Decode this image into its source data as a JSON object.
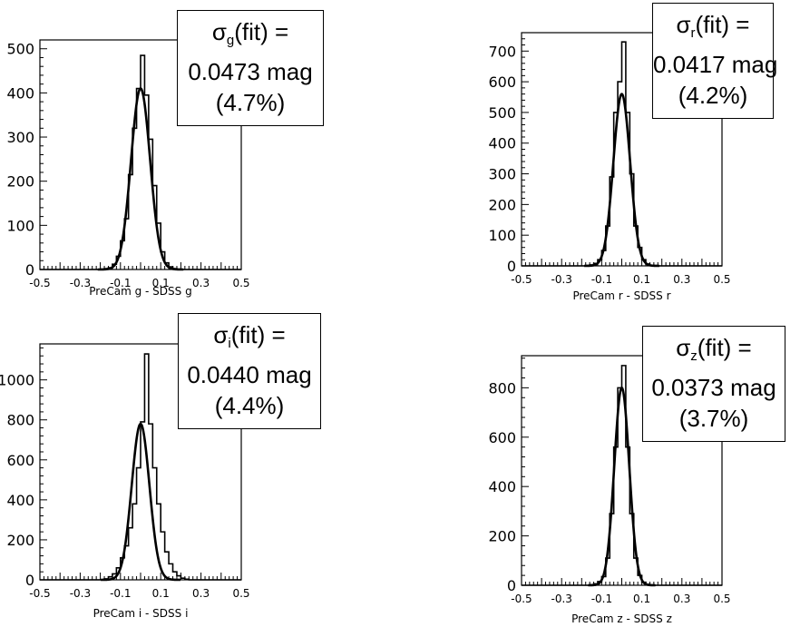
{
  "chart_data": [
    {
      "id": "g",
      "type": "histogram",
      "xlabel": "PreCam g - SDSS g",
      "xlim": [
        -0.5,
        0.5
      ],
      "ylim": [
        0,
        520
      ],
      "xticks": [
        -0.5,
        -0.3,
        -0.1,
        0.1,
        0.3,
        0.5
      ],
      "xtick_labels": [
        "-0.5",
        "-0.3",
        "-0.1",
        "0.1",
        "0.3",
        "0.5"
      ],
      "yticks": [
        0,
        100,
        200,
        300,
        400,
        500
      ],
      "ytick_labels": [
        "0",
        "100",
        "200",
        "300",
        "400",
        "500"
      ],
      "bins": [
        -0.5,
        -0.48,
        -0.46,
        -0.44,
        -0.42,
        -0.4,
        -0.38,
        -0.36,
        -0.34,
        -0.32,
        -0.3,
        -0.28,
        -0.26,
        -0.24,
        -0.22,
        -0.2,
        -0.18,
        -0.16,
        -0.14,
        -0.12,
        -0.1,
        -0.08,
        -0.06,
        -0.04,
        -0.02,
        0.0,
        0.02,
        0.04,
        0.06,
        0.08,
        0.1,
        0.12,
        0.14,
        0.16,
        0.18,
        0.2,
        0.22,
        0.24,
        0.26,
        0.28,
        0.3,
        0.32,
        0.34,
        0.36,
        0.38,
        0.4,
        0.42,
        0.44,
        0.46,
        0.48,
        0.5
      ],
      "counts": [
        0,
        0,
        0,
        0,
        0,
        0,
        0,
        0,
        0,
        0,
        0,
        0,
        0,
        0,
        0,
        0,
        2,
        4,
        12,
        30,
        65,
        115,
        215,
        320,
        410,
        485,
        395,
        295,
        190,
        105,
        40,
        15,
        6,
        2,
        0,
        0,
        0,
        0,
        0,
        0,
        0,
        0,
        0,
        0,
        0,
        0,
        0,
        0,
        0,
        0
      ],
      "fit": {
        "amplitude": 410,
        "mean": 0.0,
        "sigma": 0.0473
      },
      "sigma_label": {
        "symbol": "σ",
        "sub": "g",
        "line1_suffix": "(fit) =",
        "line2": "0.0473 mag",
        "line3": "(4.7%)"
      }
    },
    {
      "id": "r",
      "type": "histogram",
      "xlabel": "PreCam r - SDSS r",
      "xlim": [
        -0.5,
        0.5
      ],
      "ylim": [
        0,
        760
      ],
      "xticks": [
        -0.5,
        -0.3,
        -0.1,
        0.1,
        0.3,
        0.5
      ],
      "xtick_labels": [
        "-0.5",
        "-0.3",
        "-0.1",
        "0.1",
        "0.3",
        "0.5"
      ],
      "yticks": [
        0,
        100,
        200,
        300,
        400,
        500,
        600,
        700
      ],
      "ytick_labels": [
        "0",
        "100",
        "200",
        "300",
        "400",
        "500",
        "600",
        "700"
      ],
      "bins": [
        -0.5,
        -0.48,
        -0.46,
        -0.44,
        -0.42,
        -0.4,
        -0.38,
        -0.36,
        -0.34,
        -0.32,
        -0.3,
        -0.28,
        -0.26,
        -0.24,
        -0.22,
        -0.2,
        -0.18,
        -0.16,
        -0.14,
        -0.12,
        -0.1,
        -0.08,
        -0.06,
        -0.04,
        -0.02,
        0.0,
        0.02,
        0.04,
        0.06,
        0.08,
        0.1,
        0.12,
        0.14,
        0.16,
        0.18,
        0.2,
        0.22,
        0.24,
        0.26,
        0.28,
        0.3,
        0.32,
        0.34,
        0.36,
        0.38,
        0.4,
        0.42,
        0.44,
        0.46,
        0.48,
        0.5
      ],
      "counts": [
        0,
        0,
        0,
        0,
        0,
        0,
        0,
        0,
        0,
        0,
        0,
        0,
        0,
        0,
        0,
        0,
        1,
        3,
        8,
        20,
        50,
        130,
        290,
        500,
        600,
        730,
        500,
        300,
        130,
        60,
        20,
        6,
        2,
        0,
        0,
        0,
        0,
        0,
        0,
        0,
        0,
        0,
        0,
        0,
        0,
        0,
        0,
        0,
        0,
        0
      ],
      "fit": {
        "amplitude": 560,
        "mean": 0.0,
        "sigma": 0.0417
      },
      "sigma_label": {
        "symbol": "σ",
        "sub": "r",
        "line1_suffix": "(fit) =",
        "line2": "0.0417 mag",
        "line3": "(4.2%)"
      }
    },
    {
      "id": "i",
      "type": "histogram",
      "xlabel": "PreCam i - SDSS i",
      "xlim": [
        -0.5,
        0.5
      ],
      "ylim": [
        0,
        1180
      ],
      "xticks": [
        -0.5,
        -0.3,
        -0.1,
        0.1,
        0.3,
        0.5
      ],
      "xtick_labels": [
        "-0.5",
        "-0.3",
        "-0.1",
        "0.1",
        "0.3",
        "0.5"
      ],
      "yticks": [
        0,
        200,
        400,
        600,
        800,
        1000
      ],
      "ytick_labels": [
        "0",
        "200",
        "400",
        "600",
        "800",
        "1000"
      ],
      "bins": [
        -0.5,
        -0.48,
        -0.46,
        -0.44,
        -0.42,
        -0.4,
        -0.38,
        -0.36,
        -0.34,
        -0.32,
        -0.3,
        -0.28,
        -0.26,
        -0.24,
        -0.22,
        -0.2,
        -0.18,
        -0.16,
        -0.14,
        -0.12,
        -0.1,
        -0.08,
        -0.06,
        -0.04,
        -0.02,
        0.0,
        0.02,
        0.04,
        0.06,
        0.08,
        0.1,
        0.12,
        0.14,
        0.16,
        0.18,
        0.2,
        0.22,
        0.24,
        0.26,
        0.28,
        0.3,
        0.32,
        0.34,
        0.36,
        0.38,
        0.4,
        0.42,
        0.44,
        0.46,
        0.48,
        0.5
      ],
      "counts": [
        0,
        0,
        0,
        0,
        0,
        0,
        0,
        0,
        0,
        0,
        0,
        0,
        0,
        0,
        0,
        0,
        5,
        15,
        30,
        60,
        110,
        170,
        260,
        380,
        560,
        790,
        1130,
        780,
        560,
        380,
        240,
        140,
        80,
        40,
        20,
        8,
        3,
        0,
        0,
        0,
        0,
        0,
        0,
        0,
        0,
        0,
        0,
        0,
        0,
        0
      ],
      "fit": {
        "amplitude": 780,
        "mean": 0.0,
        "sigma": 0.044
      },
      "sigma_label": {
        "symbol": "σ",
        "sub": "i",
        "line1_suffix": "(fit) =",
        "line2": "0.0440 mag",
        "line3": "(4.4%)"
      }
    },
    {
      "id": "z",
      "type": "histogram",
      "xlabel": "PreCam z - SDSS z",
      "xlim": [
        -0.5,
        0.5
      ],
      "ylim": [
        0,
        930
      ],
      "xticks": [
        -0.5,
        -0.3,
        -0.1,
        0.1,
        0.3,
        0.5
      ],
      "xtick_labels": [
        "-0.5",
        "-0.3",
        "-0.1",
        "0.1",
        "0.3",
        "0.5"
      ],
      "yticks": [
        0,
        200,
        400,
        600,
        800
      ],
      "ytick_labels": [
        "0",
        "200",
        "400",
        "600",
        "800"
      ],
      "bins": [
        -0.5,
        -0.48,
        -0.46,
        -0.44,
        -0.42,
        -0.4,
        -0.38,
        -0.36,
        -0.34,
        -0.32,
        -0.3,
        -0.28,
        -0.26,
        -0.24,
        -0.22,
        -0.2,
        -0.18,
        -0.16,
        -0.14,
        -0.12,
        -0.1,
        -0.08,
        -0.06,
        -0.04,
        -0.02,
        0.0,
        0.02,
        0.04,
        0.06,
        0.08,
        0.1,
        0.12,
        0.14,
        0.16,
        0.18,
        0.2,
        0.22,
        0.24,
        0.26,
        0.28,
        0.3,
        0.32,
        0.34,
        0.36,
        0.38,
        0.4,
        0.42,
        0.44,
        0.46,
        0.48,
        0.5
      ],
      "counts": [
        0,
        0,
        0,
        0,
        0,
        0,
        0,
        0,
        0,
        0,
        0,
        0,
        0,
        0,
        0,
        0,
        0,
        2,
        6,
        15,
        35,
        110,
        290,
        560,
        800,
        890,
        560,
        290,
        110,
        40,
        12,
        4,
        1,
        0,
        0,
        0,
        0,
        0,
        0,
        0,
        0,
        0,
        0,
        0,
        0,
        0,
        0,
        0,
        0,
        0
      ],
      "fit": {
        "amplitude": 800,
        "mean": 0.0,
        "sigma": 0.0373
      },
      "sigma_label": {
        "symbol": "σ",
        "sub": "z",
        "line1_suffix": "(fit) =",
        "line2": "0.0373 mag",
        "line3": "(3.7%)"
      }
    }
  ]
}
